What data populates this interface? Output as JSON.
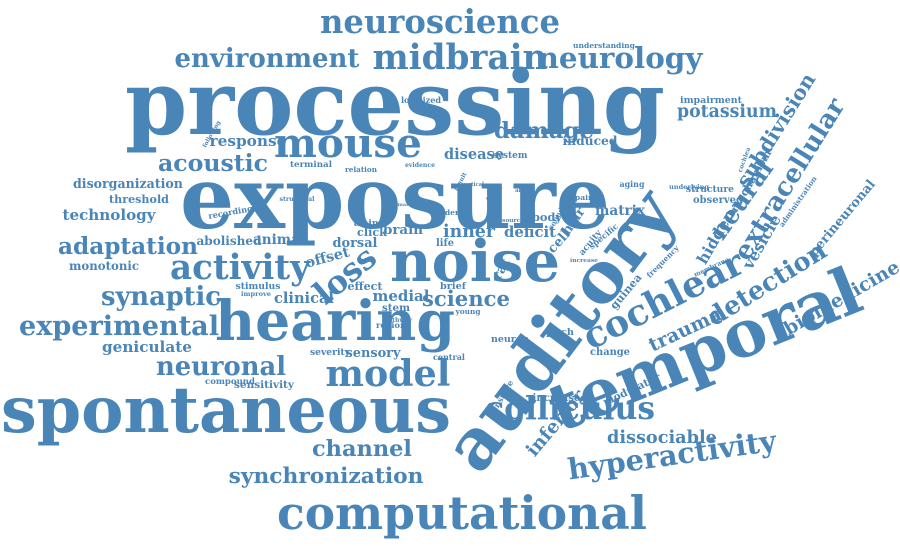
{
  "accent": "#4a85b8",
  "words": [
    "processing",
    "exposure",
    "auditory",
    "hearing",
    "noise",
    "spontaneous",
    "temporal",
    "computational",
    "neuroscience",
    "midbrain",
    "neurology",
    "environment",
    "mouse",
    "activity",
    "cochlear",
    "model",
    "neuronal",
    "experimental",
    "colliculus",
    "hyperactivity",
    "synchronization",
    "extracellular",
    "detection",
    "channel",
    "acoustic",
    "adaptation",
    "synaptic",
    "damage",
    "loss",
    "science",
    "trauma",
    "inferior",
    "neural",
    "biomedicine",
    "dissociable",
    "response",
    "potassium",
    "subdivision",
    "hidden",
    "technology",
    "disorganization",
    "threshold",
    "geniculate",
    "induced",
    "disease",
    "deficit",
    "inner",
    "hair",
    "cell",
    "mechanism",
    "cochlea",
    "vesicle",
    "perineuronal",
    "impairment",
    "medial",
    "dorsal",
    "animal",
    "stem",
    "sensory",
    "sensitivity",
    "compound",
    "clinical",
    "improve",
    "stimulus",
    "offset",
    "brain",
    "click",
    "train",
    "matrix",
    "body",
    "specific",
    "acuity",
    "sound",
    "guinea",
    "frequency",
    "observed",
    "modulator",
    "increased",
    "sensitive",
    "central",
    "neuron",
    "pitch",
    "change",
    "region",
    "severity",
    "monotonic",
    "recording",
    "abolished",
    "structural",
    "terminal",
    "relation",
    "evidence",
    "system",
    "localized",
    "understanding",
    "aging",
    "impair",
    "underlying",
    "structure",
    "administration",
    "membrane",
    "pathway",
    "older",
    "normal",
    "effect",
    "life",
    "brief",
    "result",
    "vertical",
    "trial",
    "source",
    "ability",
    "increase",
    "young",
    "following",
    "rat"
  ]
}
